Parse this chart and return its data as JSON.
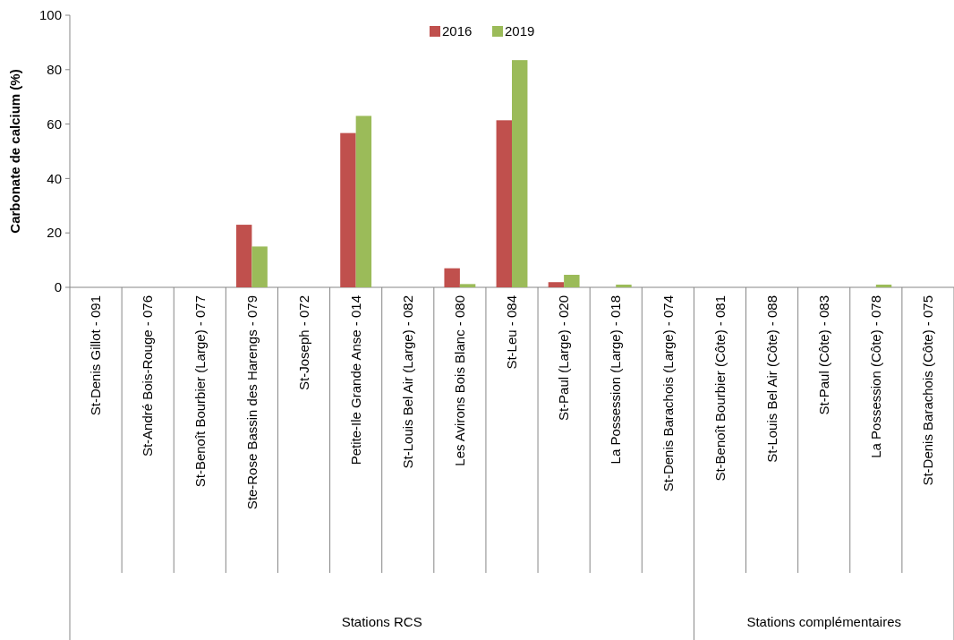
{
  "chart_data": {
    "type": "bar",
    "ylabel": "Carbonate de calcium (%)",
    "categories": [
      "St-Denis Gillot - 091",
      "St-André Bois-Rouge - 076",
      "St-Benoît Bourbier (Large) - 077",
      "Ste-Rose Bassin des Harengs - 079",
      "St-Joseph - 072",
      "Petite-Ile Grande Anse - 014",
      "St-Louis Bel Air (Large) - 082",
      "Les Avirons Bois Blanc - 080",
      "St-Leu - 084",
      "St-Paul (Large) - 020",
      "La Possession (Large) - 018",
      "St-Denis Barachois (Large) - 074",
      "St-Benoît Bourbier (Côte) - 081",
      "St-Louis Bel Air (Côte) - 088",
      "St-Paul (Côte) - 083",
      "La Possession (Côte) - 078",
      "St-Denis Barachois (Côte) - 075"
    ],
    "series": [
      {
        "name": "2016",
        "color": "#c0504d",
        "values": [
          0,
          0,
          0,
          23,
          0,
          56.7,
          0,
          7,
          61.4,
          1.9,
          0,
          0,
          0,
          0,
          0,
          0,
          0
        ]
      },
      {
        "name": "2019",
        "color": "#9bbb59",
        "values": [
          0,
          0,
          0,
          15,
          0,
          63,
          0,
          1.2,
          83.5,
          4.6,
          1,
          0,
          0,
          0,
          0,
          1,
          0
        ]
      }
    ],
    "ylim": [
      0,
      100
    ],
    "yticks": [
      0,
      20,
      40,
      60,
      80,
      100
    ],
    "grid": false,
    "legend": "top",
    "annotations": [
      "Stations RCS",
      "Stations complémentaires"
    ]
  }
}
